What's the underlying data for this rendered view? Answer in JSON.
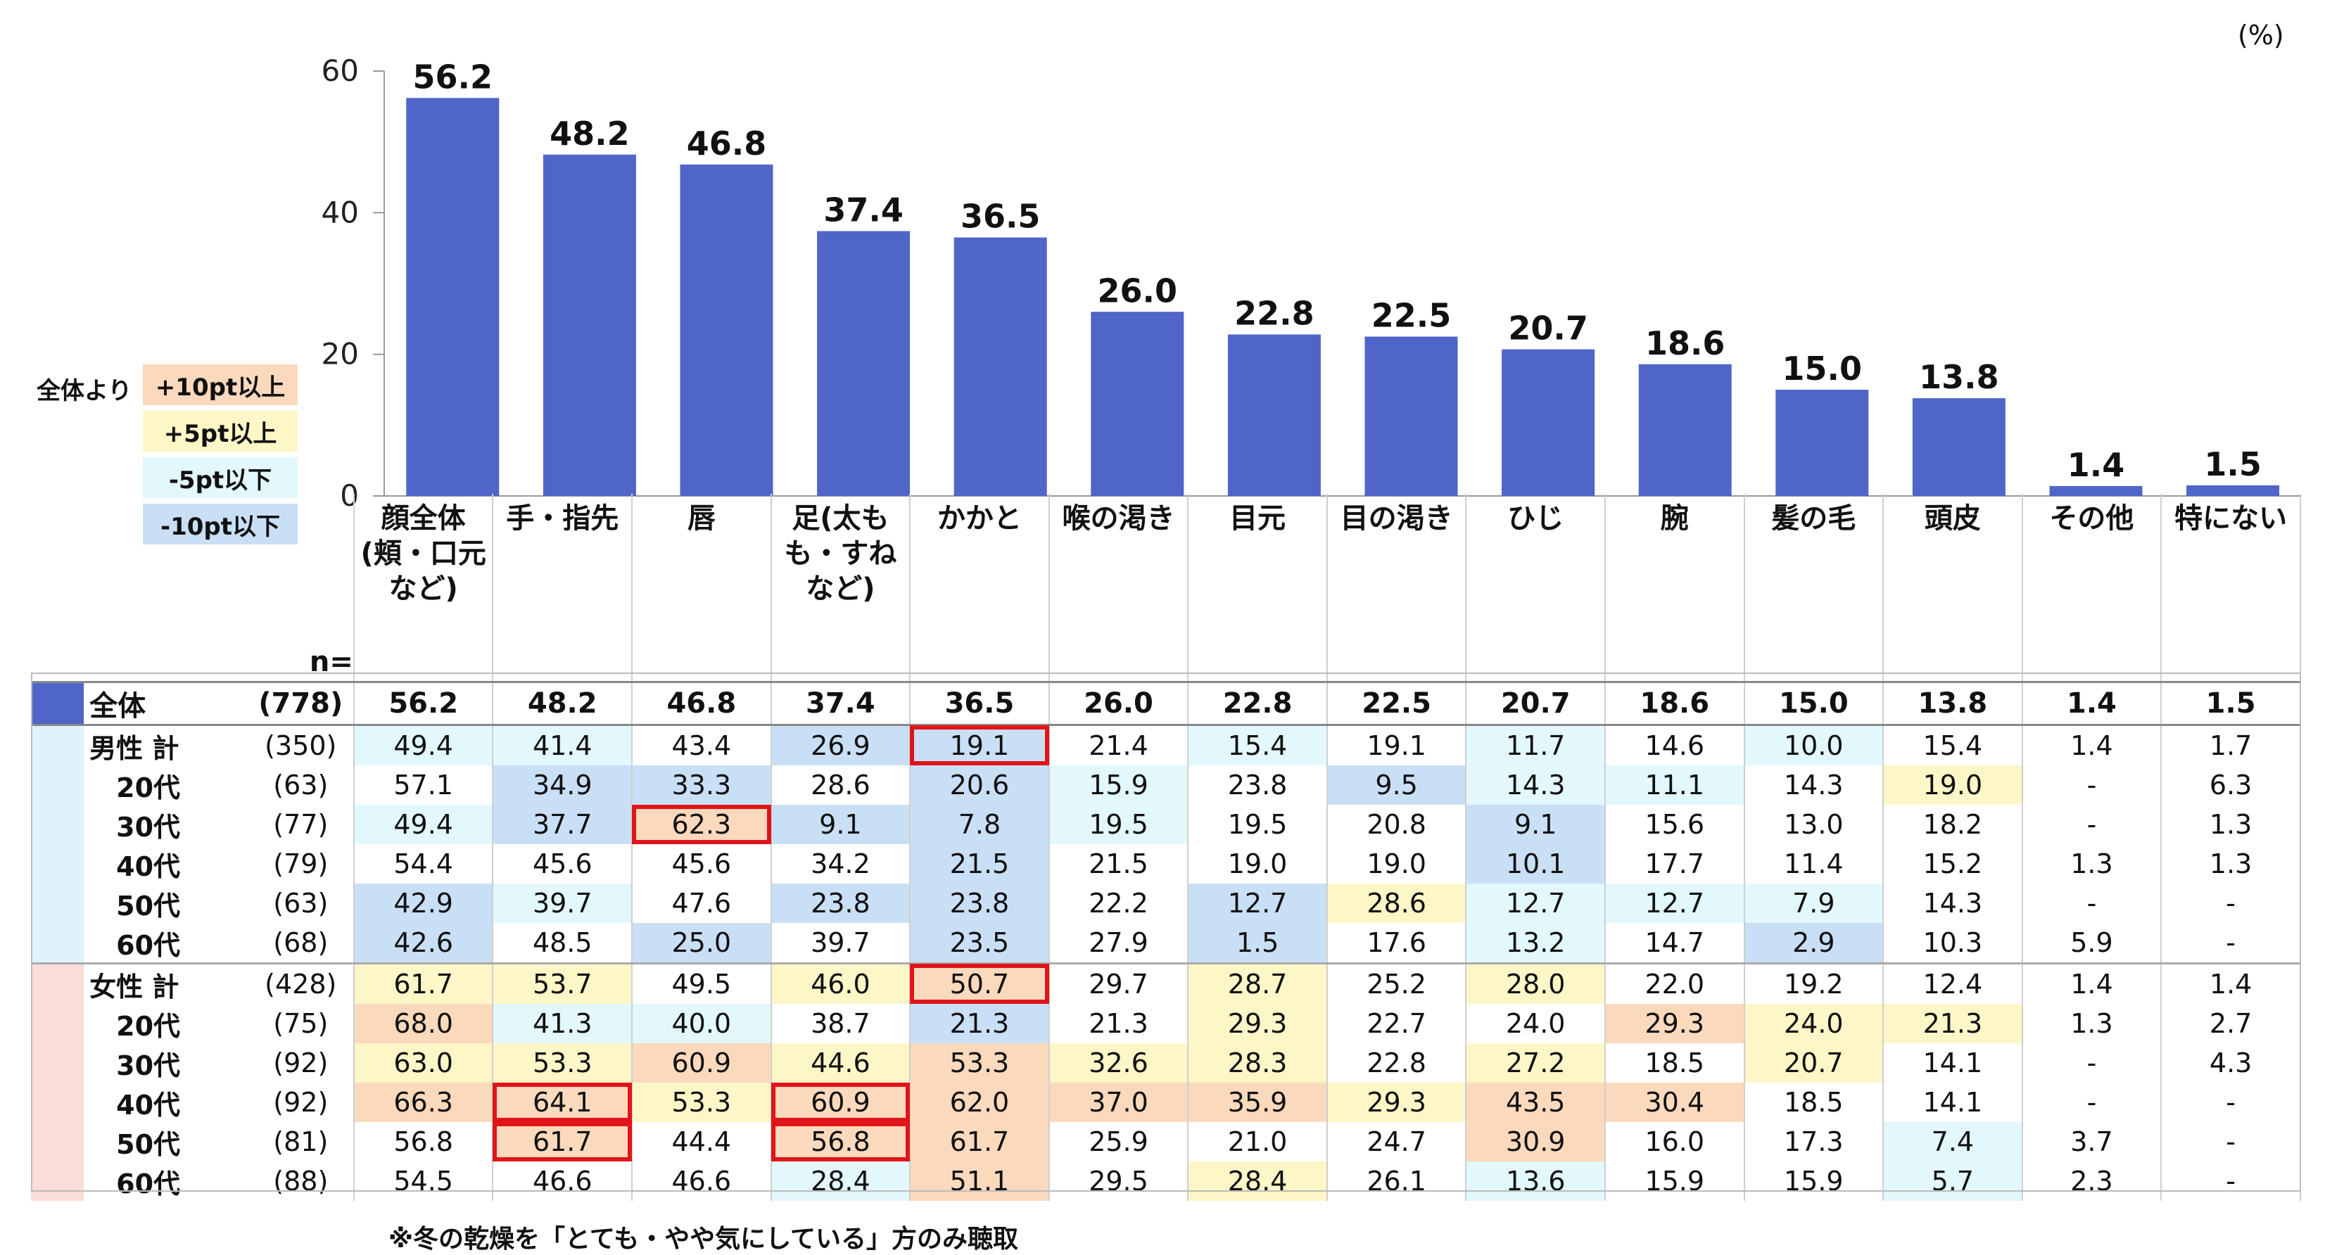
{
  "unit_label": "(%)",
  "legend": {
    "lead": "全体より",
    "items": [
      {
        "label": "+10pt以上",
        "color": "#fbd9bd"
      },
      {
        "label": "+5pt以上",
        "color": "#fdf6c7"
      },
      {
        "label": "-5pt以下",
        "color": "#e2f8fc"
      },
      {
        "label": "-10pt以下",
        "color": "#c9dff5"
      }
    ]
  },
  "bar_color": "#4f65c8",
  "chart_data": {
    "type": "bar",
    "categories": [
      "顔全体\n(頬・口元\nなど)",
      "手・指先",
      "唇",
      "足(太も\nも・すね\nなど)",
      "かかと",
      "喉の渇き",
      "目元",
      "目の渇き",
      "ひじ",
      "腕",
      "髪の毛",
      "頭皮",
      "その他",
      "特にない"
    ],
    "values": [
      56.2,
      48.2,
      46.8,
      37.4,
      36.5,
      26.0,
      22.8,
      22.5,
      20.7,
      18.6,
      15.0,
      13.8,
      1.4,
      1.5
    ],
    "value_labels": [
      "56.2",
      "48.2",
      "46.8",
      "37.4",
      "36.5",
      "26.0",
      "22.8",
      "22.5",
      "20.7",
      "18.6",
      "15.0",
      "13.8",
      "1.4",
      "1.5"
    ],
    "yticks": [
      "0",
      "20",
      "40",
      "60"
    ],
    "ylim": [
      0,
      60
    ],
    "xlabel": "",
    "ylabel": ""
  },
  "table": {
    "n_header": "n=",
    "rows": [
      {
        "name": "全体",
        "n": "(778)",
        "group": "total",
        "values": [
          "56.2",
          "48.2",
          "46.8",
          "37.4",
          "36.5",
          "26.0",
          "22.8",
          "22.5",
          "20.7",
          "18.6",
          "15.0",
          "13.8",
          "1.4",
          "1.5"
        ],
        "colors": [
          "",
          "",
          "",
          "",
          "",
          "",
          "",
          "",
          "",
          "",
          "",
          "",
          "",
          ""
        ]
      },
      {
        "name": "男性 計",
        "n": "(350)",
        "group": "male",
        "values": [
          "49.4",
          "41.4",
          "43.4",
          "26.9",
          "19.1",
          "21.4",
          "15.4",
          "19.1",
          "11.7",
          "14.6",
          "10.0",
          "15.4",
          "1.4",
          "1.7"
        ],
        "colors": [
          "m5",
          "m5",
          "",
          "m10",
          "m10",
          "",
          "m5",
          "",
          "m5",
          "",
          "m5",
          "",
          "",
          ""
        ]
      },
      {
        "name": "20代",
        "n": "(63)",
        "group": "male",
        "values": [
          "57.1",
          "34.9",
          "33.3",
          "28.6",
          "20.6",
          "15.9",
          "23.8",
          "9.5",
          "14.3",
          "11.1",
          "14.3",
          "19.0",
          "-",
          "6.3"
        ],
        "colors": [
          "",
          "m10",
          "m10",
          "",
          "m10",
          "m5",
          "",
          "m10",
          "m5",
          "m5",
          "",
          "p5",
          "",
          ""
        ]
      },
      {
        "name": "30代",
        "n": "(77)",
        "group": "male",
        "values": [
          "49.4",
          "37.7",
          "62.3",
          "9.1",
          "7.8",
          "19.5",
          "19.5",
          "20.8",
          "9.1",
          "15.6",
          "13.0",
          "18.2",
          "-",
          "1.3"
        ],
        "colors": [
          "m5",
          "m10",
          "p10",
          "m10",
          "m10",
          "m5",
          "",
          "",
          "m10",
          "",
          "",
          "",
          "",
          ""
        ]
      },
      {
        "name": "40代",
        "n": "(79)",
        "group": "male",
        "values": [
          "54.4",
          "45.6",
          "45.6",
          "34.2",
          "21.5",
          "21.5",
          "19.0",
          "19.0",
          "10.1",
          "17.7",
          "11.4",
          "15.2",
          "1.3",
          "1.3"
        ],
        "colors": [
          "",
          "",
          "",
          "",
          "m10",
          "",
          "",
          "",
          "m10",
          "",
          "",
          "",
          "",
          ""
        ]
      },
      {
        "name": "50代",
        "n": "(63)",
        "group": "male",
        "values": [
          "42.9",
          "39.7",
          "47.6",
          "23.8",
          "23.8",
          "22.2",
          "12.7",
          "28.6",
          "12.7",
          "12.7",
          "7.9",
          "14.3",
          "-",
          "-"
        ],
        "colors": [
          "m10",
          "m5",
          "",
          "m10",
          "m10",
          "",
          "m10",
          "p5",
          "m5",
          "m5",
          "m5",
          "",
          "",
          ""
        ]
      },
      {
        "name": "60代",
        "n": "(68)",
        "group": "male",
        "values": [
          "42.6",
          "48.5",
          "25.0",
          "39.7",
          "23.5",
          "27.9",
          "1.5",
          "17.6",
          "13.2",
          "14.7",
          "2.9",
          "10.3",
          "5.9",
          "-"
        ],
        "colors": [
          "m10",
          "",
          "m10",
          "",
          "m10",
          "",
          "m10",
          "",
          "m5",
          "",
          "m10",
          "",
          "",
          ""
        ]
      },
      {
        "name": "女性 計",
        "n": "(428)",
        "group": "female",
        "values": [
          "61.7",
          "53.7",
          "49.5",
          "46.0",
          "50.7",
          "29.7",
          "28.7",
          "25.2",
          "28.0",
          "22.0",
          "19.2",
          "12.4",
          "1.4",
          "1.4"
        ],
        "colors": [
          "p5",
          "p5",
          "",
          "p5",
          "p10",
          "",
          "p5",
          "",
          "p5",
          "",
          "",
          "",
          "",
          ""
        ]
      },
      {
        "name": "20代",
        "n": "(75)",
        "group": "female",
        "values": [
          "68.0",
          "41.3",
          "40.0",
          "38.7",
          "21.3",
          "21.3",
          "29.3",
          "22.7",
          "24.0",
          "29.3",
          "24.0",
          "21.3",
          "1.3",
          "2.7"
        ],
        "colors": [
          "p10",
          "m5",
          "m5",
          "",
          "m10",
          "",
          "p5",
          "",
          "",
          "p10",
          "p5",
          "p5",
          "",
          ""
        ]
      },
      {
        "name": "30代",
        "n": "(92)",
        "group": "female",
        "values": [
          "63.0",
          "53.3",
          "60.9",
          "44.6",
          "53.3",
          "32.6",
          "28.3",
          "22.8",
          "27.2",
          "18.5",
          "20.7",
          "14.1",
          "-",
          "4.3"
        ],
        "colors": [
          "p5",
          "p5",
          "p10",
          "p5",
          "p10",
          "p5",
          "p5",
          "",
          "p5",
          "",
          "p5",
          "",
          "",
          ""
        ]
      },
      {
        "name": "40代",
        "n": "(92)",
        "group": "female",
        "values": [
          "66.3",
          "64.1",
          "53.3",
          "60.9",
          "62.0",
          "37.0",
          "35.9",
          "29.3",
          "43.5",
          "30.4",
          "18.5",
          "14.1",
          "-",
          "-"
        ],
        "colors": [
          "p10",
          "p10",
          "p5",
          "p10",
          "p10",
          "p10",
          "p10",
          "p5",
          "p10",
          "p10",
          "",
          "",
          "",
          ""
        ]
      },
      {
        "name": "50代",
        "n": "(81)",
        "group": "female",
        "values": [
          "56.8",
          "61.7",
          "44.4",
          "56.8",
          "61.7",
          "25.9",
          "21.0",
          "24.7",
          "30.9",
          "16.0",
          "17.3",
          "7.4",
          "3.7",
          "-"
        ],
        "colors": [
          "",
          "p10",
          "",
          "p10",
          "p10",
          "",
          "",
          "",
          "p10",
          "",
          "",
          "m5",
          "",
          ""
        ]
      },
      {
        "name": "60代",
        "n": "(88)",
        "group": "female",
        "values": [
          "54.5",
          "46.6",
          "46.6",
          "28.4",
          "51.1",
          "29.5",
          "28.4",
          "26.1",
          "13.6",
          "15.9",
          "15.9",
          "5.7",
          "2.3",
          "-"
        ],
        "colors": [
          "",
          "",
          "",
          "m5",
          "p10",
          "",
          "p5",
          "",
          "m5",
          "",
          "",
          "m5",
          "",
          ""
        ]
      }
    ],
    "highlights": [
      {
        "row": 1,
        "col": 4
      },
      {
        "row": 3,
        "col": 2
      },
      {
        "row": 7,
        "col": 4
      },
      {
        "row": 10,
        "col": 1
      },
      {
        "row": 11,
        "col": 1
      },
      {
        "row": 10,
        "col": 3
      },
      {
        "row": 11,
        "col": 3
      }
    ]
  },
  "note": "※冬の乾燥を「とても・やや気にしている」方のみ聴取"
}
